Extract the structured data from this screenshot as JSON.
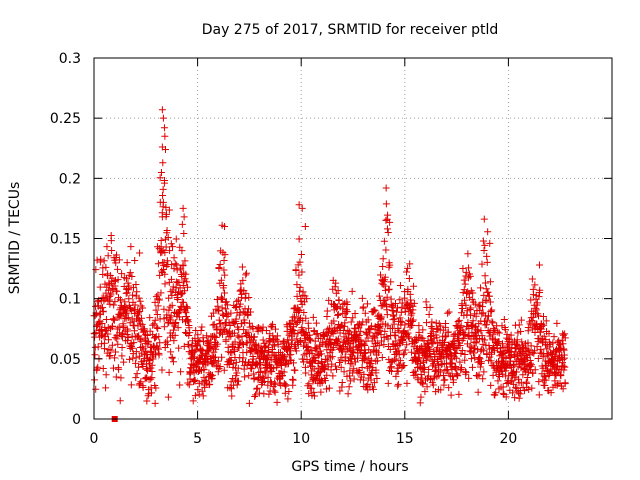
{
  "chart_data": {
    "type": "scatter",
    "title": "Day 275 of 2017, SRMTID for receiver ptld",
    "xlabel": "GPS time / hours",
    "ylabel": "SRMTID / TECUs",
    "xlim": [
      0,
      25
    ],
    "ylim": [
      0,
      0.3
    ],
    "x_ticks": [
      0,
      5,
      10,
      15,
      20
    ],
    "y_ticks": [
      0,
      0.05,
      0.1,
      0.15,
      0.2,
      0.25,
      0.3
    ],
    "x_tick_labels": [
      "0",
      "5",
      "10",
      "15",
      "20"
    ],
    "y_tick_labels": [
      "0",
      "0.05",
      "0.1",
      "0.15",
      "0.2",
      "0.25",
      "0.3"
    ],
    "grid": true,
    "series": [
      {
        "name": "SRMTID",
        "marker": "plus",
        "color": "#e00000",
        "x_range": [
          0,
          22.75
        ],
        "approx_count": 2600,
        "typical_range": [
          0.02,
          0.1
        ],
        "notable_points": [
          {
            "x": 3.3,
            "y": 0.257
          },
          {
            "x": 3.35,
            "y": 0.25
          },
          {
            "x": 3.4,
            "y": 0.242
          },
          {
            "x": 3.42,
            "y": 0.235
          },
          {
            "x": 3.3,
            "y": 0.226
          },
          {
            "x": 3.45,
            "y": 0.224
          },
          {
            "x": 3.32,
            "y": 0.213
          },
          {
            "x": 3.4,
            "y": 0.196
          },
          {
            "x": 3.35,
            "y": 0.18
          },
          {
            "x": 3.3,
            "y": 0.168
          },
          {
            "x": 3.5,
            "y": 0.17
          },
          {
            "x": 4.3,
            "y": 0.175
          },
          {
            "x": 4.35,
            "y": 0.168
          },
          {
            "x": 9.9,
            "y": 0.178
          },
          {
            "x": 10.05,
            "y": 0.175
          },
          {
            "x": 10.2,
            "y": 0.16
          },
          {
            "x": 14.1,
            "y": 0.192
          },
          {
            "x": 14.15,
            "y": 0.166
          },
          {
            "x": 14.2,
            "y": 0.155
          },
          {
            "x": 6.3,
            "y": 0.16
          },
          {
            "x": 19.1,
            "y": 0.146
          },
          {
            "x": 21.5,
            "y": 0.128
          },
          {
            "x": 0.85,
            "y": 0.14
          },
          {
            "x": 1.6,
            "y": 0.13
          },
          {
            "x": 2.2,
            "y": 0.138
          },
          {
            "x": 2.55,
            "y": 0.015
          },
          {
            "x": 2.95,
            "y": 0.013
          },
          {
            "x": 7.5,
            "y": 0.013
          }
        ],
        "square_marker": {
          "x": 1.0,
          "y": 0.0
        }
      }
    ]
  }
}
